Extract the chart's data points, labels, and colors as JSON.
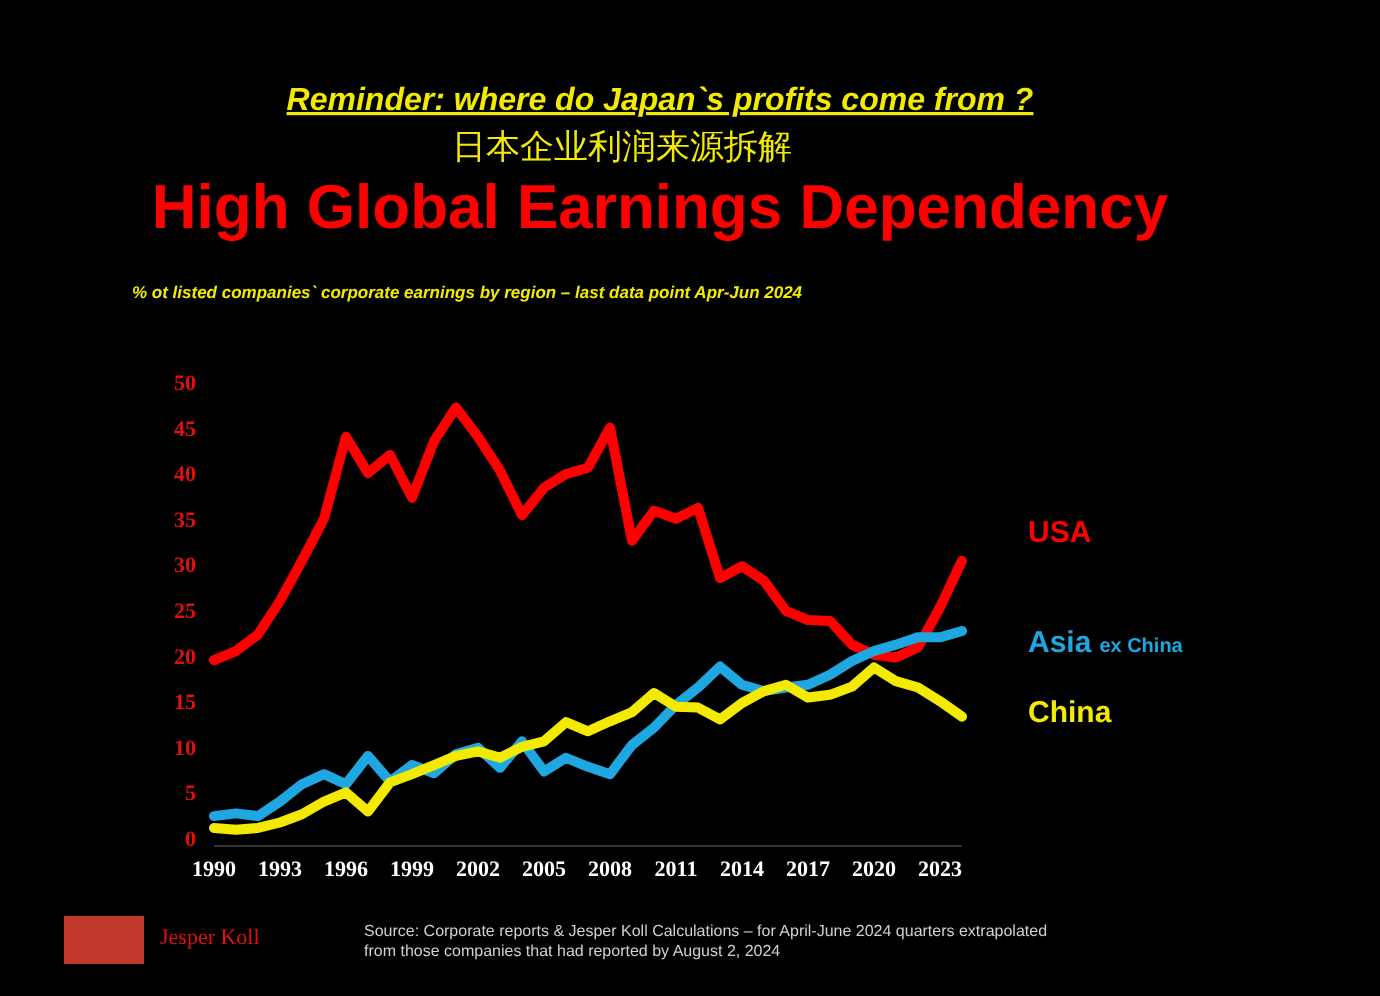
{
  "chart_data": {
    "type": "line",
    "title": "High Global Earnings Dependency",
    "subtitle": "% ot listed companies` corporate earnings by region – last data point Apr-Jun 2024",
    "annotations": [
      "Reminder: where do Japan`s profits come from ?",
      "日本企业利润来源拆解",
      "Jesper Koll",
      "Source: Corporate reports  & Jesper Koll Calculations – for April-June 2024 quarters extrapolated from those companies  that had reported by August 2, 2024"
    ],
    "x": [
      1990,
      1991,
      1992,
      1993,
      1994,
      1995,
      1996,
      1997,
      1998,
      1999,
      2000,
      2001,
      2002,
      2003,
      2004,
      2005,
      2006,
      2007,
      2008,
      2009,
      2010,
      2011,
      2012,
      2013,
      2014,
      2015,
      2016,
      2017,
      2018,
      2019,
      2020,
      2021,
      2022,
      2023,
      2024
    ],
    "series": [
      {
        "name": "USA",
        "color": "#ff0000",
        "values": [
          19.5,
          20.5,
          22.3,
          26,
          30.4,
          35,
          44,
          40,
          42,
          37.3,
          43.5,
          47.2,
          44,
          40.3,
          35.4,
          38.4,
          39.9,
          40.6,
          45,
          32.6,
          35.9,
          35,
          36.2,
          28.5,
          29.8,
          28.2,
          24.9,
          23.9,
          23.8,
          21.2,
          20.1,
          19.8,
          20.9,
          25.3,
          30.4
        ]
      },
      {
        "name": "Asia ex China",
        "color": "#1ea7e1",
        "values": [
          2.4,
          2.7,
          2.4,
          4,
          5.9,
          7,
          5.9,
          9,
          6.2,
          8,
          7.1,
          9.2,
          9.9,
          7.7,
          10.6,
          7.3,
          8.8,
          7.8,
          7,
          10.2,
          12.1,
          14.6,
          16.5,
          18.8,
          16.8,
          16.1,
          16.5,
          16.8,
          17.9,
          19.4,
          20.5,
          21.2,
          22,
          22,
          22.7
        ]
      },
      {
        "name": "China",
        "color": "#f2ea00",
        "values": [
          1.1,
          0.9,
          1.1,
          1.7,
          2.6,
          4,
          5,
          2.9,
          6.1,
          7,
          8,
          9,
          9.5,
          8.8,
          10,
          10.6,
          12.7,
          11.7,
          12.8,
          13.8,
          15.9,
          14.4,
          14.3,
          13,
          14.8,
          16.1,
          16.8,
          15.4,
          15.7,
          16.6,
          18.7,
          17.2,
          16.5,
          15,
          13.3
        ]
      }
    ],
    "xlim": [
      1990,
      2024
    ],
    "xticks": [
      1990,
      1993,
      1996,
      1999,
      2002,
      2005,
      2008,
      2011,
      2014,
      2017,
      2020,
      2023
    ],
    "ylim": [
      0,
      50
    ],
    "yticks": [
      0,
      5,
      10,
      15,
      20,
      25,
      30,
      35,
      40,
      45,
      50
    ],
    "legend": "right"
  }
}
